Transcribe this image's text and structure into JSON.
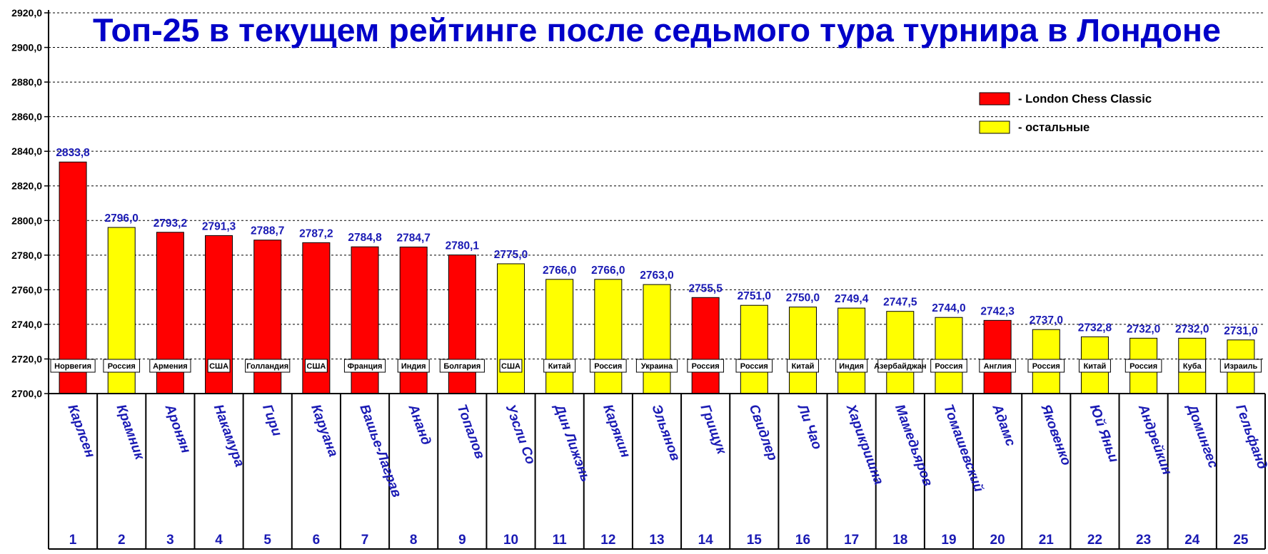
{
  "chart_data": {
    "type": "bar",
    "title": "Топ-25 в текущем рейтинге после седьмого тура турнира в Лондоне",
    "ylim": [
      2700,
      2920
    ],
    "yticks": [
      "2700,0",
      "2720,0",
      "2740,0",
      "2760,0",
      "2780,0",
      "2800,0",
      "2820,0",
      "2840,0",
      "2860,0",
      "2880,0",
      "2900,0",
      "2920,0"
    ],
    "grid": true,
    "legend_position": "top-right",
    "legend": [
      {
        "color": "#ff0000",
        "label": "- London Chess Classic"
      },
      {
        "color": "#ffff00",
        "label": "- остальные"
      }
    ],
    "colors": {
      "london": "#ff0000",
      "other": "#ffff00"
    },
    "bars": [
      {
        "rank": "1",
        "player": "Карлсен",
        "country": "Норвегия",
        "value": 2833.8,
        "label": "2833,8",
        "london": true
      },
      {
        "rank": "2",
        "player": "Крамник",
        "country": "Россия",
        "value": 2796.0,
        "label": "2796,0",
        "london": false
      },
      {
        "rank": "3",
        "player": "Аронян",
        "country": "Армения",
        "value": 2793.2,
        "label": "2793,2",
        "london": true
      },
      {
        "rank": "4",
        "player": "Накамура",
        "country": "США",
        "value": 2791.3,
        "label": "2791,3",
        "london": true
      },
      {
        "rank": "5",
        "player": "Гири",
        "country": "Голландия",
        "value": 2788.7,
        "label": "2788,7",
        "london": true
      },
      {
        "rank": "6",
        "player": "Каруана",
        "country": "США",
        "value": 2787.2,
        "label": "2787,2",
        "london": true
      },
      {
        "rank": "7",
        "player": "Вашье-Лаграв",
        "country": "Франция",
        "value": 2784.8,
        "label": "2784,8",
        "london": true
      },
      {
        "rank": "8",
        "player": "Ананд",
        "country": "Индия",
        "value": 2784.7,
        "label": "2784,7",
        "london": true
      },
      {
        "rank": "9",
        "player": "Топалов",
        "country": "Болгария",
        "value": 2780.1,
        "label": "2780,1",
        "london": true
      },
      {
        "rank": "10",
        "player": "Уэсли Со",
        "country": "США",
        "value": 2775.0,
        "label": "2775,0",
        "london": false
      },
      {
        "rank": "11",
        "player": "Дин Лижэнь",
        "country": "Китай",
        "value": 2766.0,
        "label": "2766,0",
        "london": false
      },
      {
        "rank": "12",
        "player": "Карякин",
        "country": "Россия",
        "value": 2766.0,
        "label": "2766,0",
        "london": false
      },
      {
        "rank": "13",
        "player": "Эльянов",
        "country": "Украина",
        "value": 2763.0,
        "label": "2763,0",
        "london": false
      },
      {
        "rank": "14",
        "player": "Грищук",
        "country": "Россия",
        "value": 2755.5,
        "label": "2755,5",
        "london": true
      },
      {
        "rank": "15",
        "player": "Свидлер",
        "country": "Россия",
        "value": 2751.0,
        "label": "2751,0",
        "london": false
      },
      {
        "rank": "16",
        "player": "Ли Чао",
        "country": "Китай",
        "value": 2750.0,
        "label": "2750,0",
        "london": false
      },
      {
        "rank": "17",
        "player": "Харикришна",
        "country": "Индия",
        "value": 2749.4,
        "label": "2749,4",
        "london": false
      },
      {
        "rank": "18",
        "player": "Мамедьяров",
        "country": "Азербайджан",
        "value": 2747.5,
        "label": "2747,5",
        "london": false
      },
      {
        "rank": "19",
        "player": "Томашевский",
        "country": "Россия",
        "value": 2744.0,
        "label": "2744,0",
        "london": false
      },
      {
        "rank": "20",
        "player": "Адамс",
        "country": "Англия",
        "value": 2742.3,
        "label": "2742,3",
        "london": true
      },
      {
        "rank": "21",
        "player": "Яковенко",
        "country": "Россия",
        "value": 2737.0,
        "label": "2737,0",
        "london": false
      },
      {
        "rank": "22",
        "player": "Юй Яньи",
        "country": "Китай",
        "value": 2732.8,
        "label": "2732,8",
        "london": false
      },
      {
        "rank": "23",
        "player": "Андрейкин",
        "country": "Россия",
        "value": 2732.0,
        "label": "2732,0",
        "london": false
      },
      {
        "rank": "24",
        "player": "Домингес",
        "country": "Куба",
        "value": 2732.0,
        "label": "2732,0",
        "london": false
      },
      {
        "rank": "25",
        "player": "Гельфанд",
        "country": "Израиль",
        "value": 2731.0,
        "label": "2731,0",
        "london": false
      }
    ]
  }
}
